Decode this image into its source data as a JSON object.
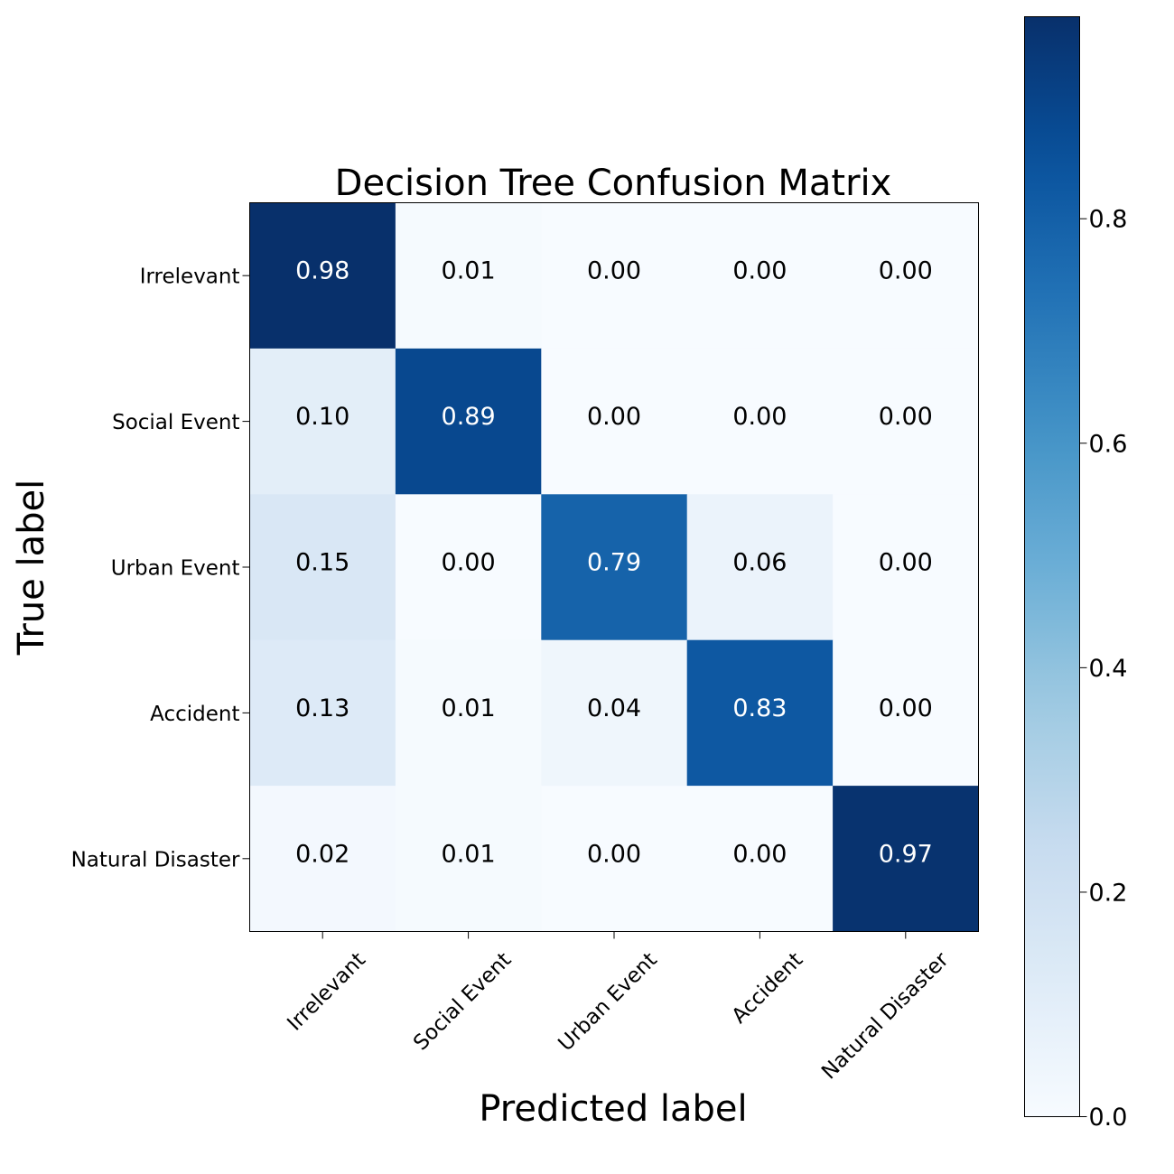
{
  "chart_data": {
    "type": "heatmap",
    "title": "Decision Tree Confusion Matrix",
    "xlabel": "Predicted label",
    "ylabel": "True label",
    "x_categories": [
      "Irrelevant",
      "Social Event",
      "Urban Event",
      "Accident",
      "Natural Disaster"
    ],
    "y_categories": [
      "Irrelevant",
      "Social Event",
      "Urban Event",
      "Accident",
      "Natural Disaster"
    ],
    "values": [
      [
        0.98,
        0.01,
        0.0,
        0.0,
        0.0
      ],
      [
        0.1,
        0.89,
        0.0,
        0.0,
        0.0
      ],
      [
        0.15,
        0.0,
        0.79,
        0.06,
        0.0
      ],
      [
        0.13,
        0.01,
        0.04,
        0.83,
        0.0
      ],
      [
        0.02,
        0.01,
        0.0,
        0.0,
        0.97
      ]
    ],
    "value_labels": [
      [
        "0.98",
        "0.01",
        "0.00",
        "0.00",
        "0.00"
      ],
      [
        "0.10",
        "0.89",
        "0.00",
        "0.00",
        "0.00"
      ],
      [
        "0.15",
        "0.00",
        "0.79",
        "0.06",
        "0.00"
      ],
      [
        "0.13",
        "0.01",
        "0.04",
        "0.83",
        "0.00"
      ],
      [
        "0.02",
        "0.01",
        "0.00",
        "0.00",
        "0.97"
      ]
    ],
    "colormap": "Blues",
    "colorbar": {
      "range": [
        0.0,
        0.98
      ],
      "ticks": [
        0.0,
        0.2,
        0.4,
        0.6,
        0.8
      ],
      "tick_labels": [
        "0.0",
        "0.2",
        "0.4",
        "0.6",
        "0.8"
      ]
    },
    "grid": false,
    "x_tick_rotation_deg": 45
  }
}
